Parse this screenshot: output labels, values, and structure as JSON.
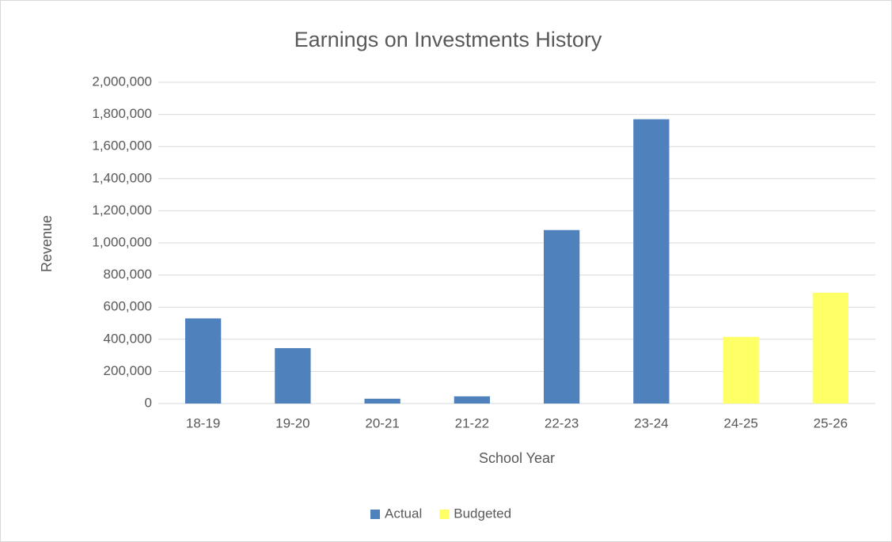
{
  "chart_data": {
    "type": "bar",
    "title": "Earnings on Investments History",
    "x_label": "School Year",
    "y_label": "Revenue",
    "categories": [
      "18-19",
      "19-20",
      "20-21",
      "21-22",
      "22-23",
      "23-24",
      "24-25",
      "25-26"
    ],
    "series": [
      {
        "name": "Actual",
        "color": "#4f81bd",
        "values": [
          530000,
          345000,
          30000,
          45000,
          1080000,
          1770000,
          null,
          null
        ]
      },
      {
        "name": "Budgeted",
        "color": "#ffff66",
        "values": [
          null,
          null,
          null,
          null,
          null,
          null,
          415000,
          690000
        ]
      }
    ],
    "ylim": [
      0,
      2000000
    ],
    "yticks": [
      0,
      {
        "value": 200000,
        "label": "200,000"
      },
      {
        "value": 400000,
        "label": "400,000"
      },
      {
        "value": 600000,
        "label": "600,000"
      },
      {
        "value": 800000,
        "label": "800,000"
      },
      {
        "value": 1000000,
        "label": "1,000,000"
      },
      {
        "value": 1200000,
        "label": "1,200,000"
      },
      {
        "value": 1400000,
        "label": "1,400,000"
      },
      {
        "value": 1600000,
        "label": "1,600,000"
      },
      {
        "value": 1800000,
        "label": "1,800,000"
      },
      {
        "value": 2000000,
        "label": "2,000,000"
      }
    ],
    "grid": true,
    "legend": "bottom"
  }
}
